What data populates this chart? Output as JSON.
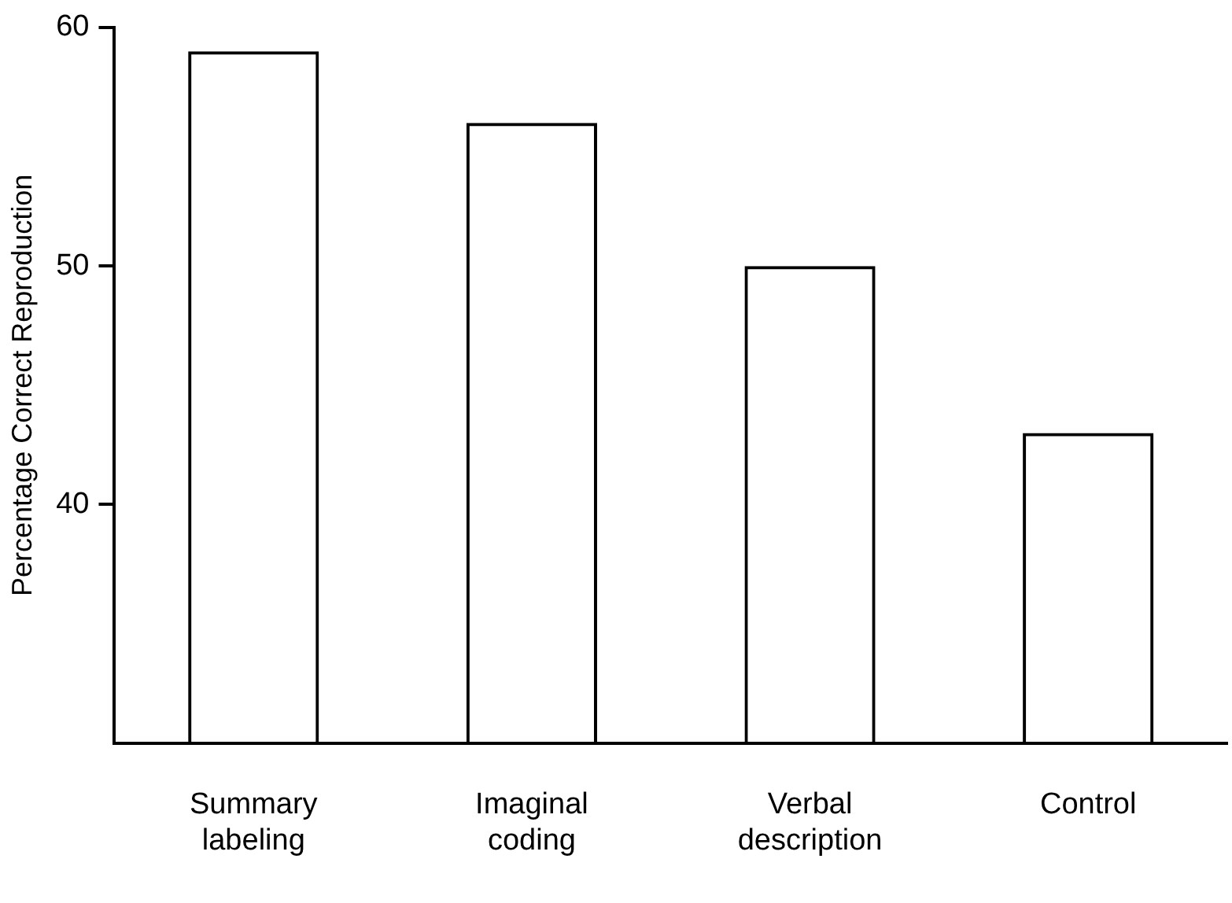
{
  "chart_data": {
    "type": "bar",
    "ylabel": "Percentage Correct Reproduction",
    "categories": [
      "Summary labeling",
      "Imaginal coding",
      "Verbal description",
      "Control"
    ],
    "values": [
      59,
      56,
      50,
      43
    ],
    "color": "#000000",
    "ylim": [
      30,
      60
    ],
    "yticks": [
      40,
      50,
      60
    ],
    "grid": false,
    "legend": false
  }
}
